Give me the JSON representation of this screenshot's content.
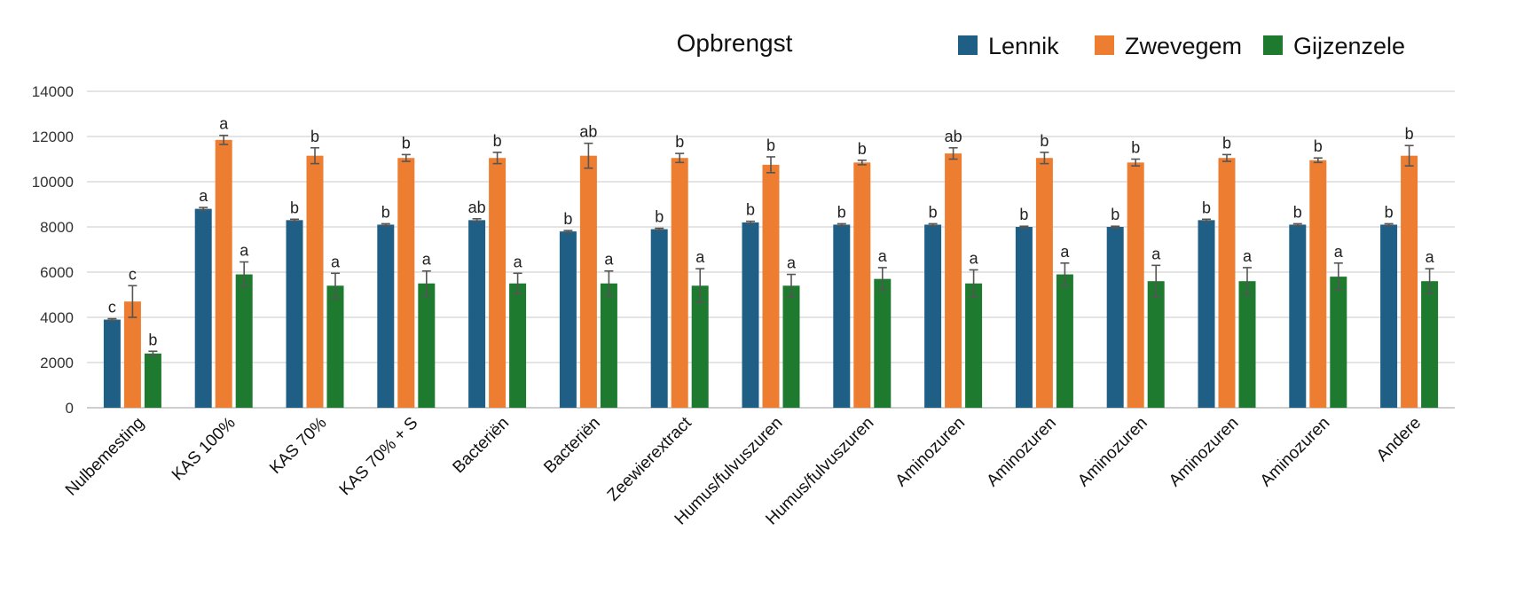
{
  "chart_data": {
    "type": "bar",
    "title": "Opbrengst",
    "xlabel": "",
    "ylabel": "",
    "ylim": [
      0,
      14000
    ],
    "yticks": [
      0,
      2000,
      4000,
      6000,
      8000,
      10000,
      12000,
      14000
    ],
    "ytick_labels": [
      "0",
      "2000",
      "4000",
      "6000",
      "8000",
      "10000",
      "12000",
      "14000"
    ],
    "grid": true,
    "legend_position": "top-right",
    "categories": [
      "Nulbemesting",
      "KAS 100%",
      "KAS 70%",
      "KAS 70% + S",
      "Bacteriën",
      "Bacteriën",
      "Zeewierextract",
      "Humus/fulvuszuren",
      "Humus/fulvuszuren",
      "Aminozuren",
      "Aminozuren",
      "Aminozuren",
      "Aminozuren",
      "Aminozuren",
      "Andere"
    ],
    "series": [
      {
        "name": "Lennik",
        "color": "#1f5f86",
        "values": [
          3900,
          8800,
          8300,
          8100,
          8300,
          7800,
          7900,
          8200,
          8100,
          8100,
          8000,
          8000,
          8300,
          8100,
          8100
        ],
        "errors": [
          40,
          60,
          40,
          40,
          60,
          40,
          40,
          50,
          40,
          40,
          30,
          30,
          40,
          40,
          40
        ],
        "letters": [
          "c",
          "a",
          "b",
          "b",
          "ab",
          "b",
          "b",
          "b",
          "b",
          "b",
          "b",
          "b",
          "b",
          "b",
          "b"
        ]
      },
      {
        "name": "Zwevegem",
        "color": "#ed7d31",
        "values": [
          4700,
          11850,
          11150,
          11050,
          11050,
          11150,
          11050,
          10750,
          10850,
          11250,
          11050,
          10850,
          11050,
          10950,
          11150
        ],
        "errors": [
          700,
          200,
          350,
          150,
          250,
          550,
          200,
          350,
          100,
          250,
          250,
          150,
          150,
          100,
          450
        ],
        "letters": [
          "c",
          "a",
          "b",
          "b",
          "b",
          "ab",
          "b",
          "b",
          "b",
          "ab",
          "b",
          "b",
          "b",
          "b",
          "b"
        ]
      },
      {
        "name": "Gijzenzele",
        "color": "#1e7a2f",
        "values": [
          2400,
          5900,
          5400,
          5500,
          5500,
          5500,
          5400,
          5400,
          5700,
          5500,
          5900,
          5600,
          5600,
          5800,
          5600
        ],
        "errors": [
          100,
          550,
          550,
          550,
          450,
          550,
          750,
          500,
          500,
          600,
          500,
          700,
          600,
          600,
          550
        ],
        "letters": [
          "b",
          "a",
          "a",
          "a",
          "a",
          "a",
          "a",
          "a",
          "a",
          "a",
          "a",
          "a",
          "a",
          "a",
          "a"
        ]
      }
    ]
  }
}
